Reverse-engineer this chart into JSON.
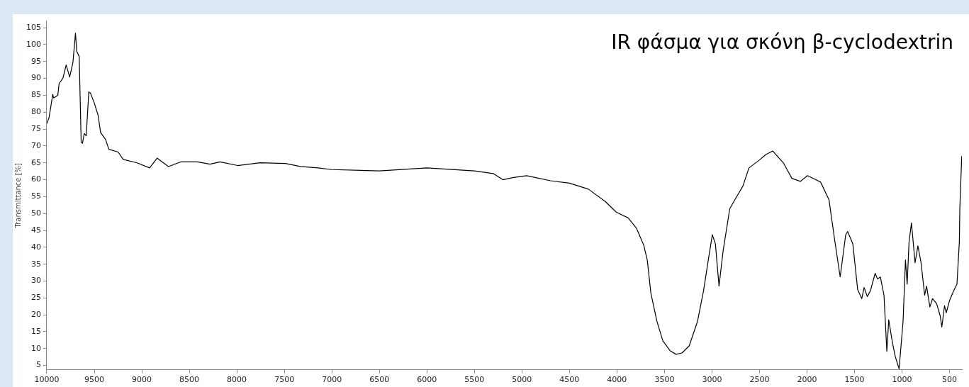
{
  "chart_data": {
    "type": "line",
    "title": "IR φάσμα για σκόνη β-cyclodextrin",
    "ylabel": "Transmittance [%]",
    "x": [
      10000,
      9976,
      9937,
      9929,
      9884,
      9870,
      9831,
      9796,
      9759,
      9725,
      9698,
      9685,
      9659,
      9638,
      9624,
      9606,
      9585,
      9558,
      9540,
      9500,
      9460,
      9434,
      9381,
      9347,
      9249,
      9196,
      9050,
      8918,
      8839,
      8720,
      8587,
      8415,
      8283,
      8177,
      7992,
      7754,
      7489,
      7331,
      7146,
      7000,
      6500,
      6000,
      5500,
      5300,
      5200,
      5100,
      4950,
      4700,
      4500,
      4300,
      4121,
      4008,
      3882,
      3794,
      3718,
      3681,
      3643,
      3580,
      3517,
      3442,
      3379,
      3316,
      3240,
      3152,
      3089,
      3039,
      2996,
      2964,
      2926,
      2883,
      2813,
      2750,
      2675,
      2611,
      2511,
      2435,
      2360,
      2247,
      2159,
      2070,
      1995,
      1857,
      1769,
      1706,
      1651,
      1593,
      1573,
      1518,
      1467,
      1424,
      1399,
      1366,
      1333,
      1283,
      1258,
      1228,
      1190,
      1160,
      1140,
      1102,
      1072,
      1031,
      989,
      964,
      946,
      926,
      901,
      863,
      833,
      800,
      762,
      742,
      707,
      679,
      636,
      598,
      581,
      553,
      535,
      498,
      460,
      422,
      397,
      392,
      372
    ],
    "series": [
      {
        "color": "#000000",
        "values": [
          76.6,
          78.4,
          85.3,
          84.2,
          85,
          88.5,
          90,
          94,
          90.4,
          94.7,
          103.4,
          98,
          96.5,
          71.1,
          70.8,
          73.7,
          73,
          86,
          85.6,
          82.7,
          79.1,
          74,
          71.9,
          69,
          68.2,
          66,
          65,
          63.5,
          66.4,
          63.9,
          65.3,
          65.3,
          64.6,
          65.3,
          64.2,
          65,
          64.8,
          63.9,
          63.5,
          63,
          62.6,
          63.5,
          62.6,
          61.8,
          60,
          60.6,
          61.2,
          59.7,
          59,
          57.2,
          53.5,
          50.4,
          48.7,
          45.6,
          40.6,
          36.2,
          26.4,
          18.1,
          12.3,
          9.4,
          8.3,
          8.7,
          10.8,
          18.1,
          27.1,
          36.2,
          43.7,
          41,
          28.5,
          38.9,
          51.4,
          54.5,
          58.1,
          63.5,
          65.6,
          67.4,
          68.5,
          64.9,
          60.4,
          59.5,
          61.2,
          59.3,
          54.1,
          41.6,
          31.2,
          43.7,
          44.7,
          41,
          27.5,
          24.8,
          28.1,
          25.4,
          27.1,
          32.3,
          30.6,
          31.2,
          25.8,
          9.2,
          18.5,
          11.9,
          7.7,
          4,
          18.1,
          36.2,
          29.1,
          41.6,
          47.2,
          35.4,
          40.4,
          35.4,
          25.8,
          28.5,
          22.3,
          24.8,
          23.3,
          19.6,
          16.4,
          22.7,
          20.6,
          24.4,
          26.9,
          29.1,
          41.6,
          51.4,
          67
        ]
      }
    ],
    "xlim": [
      10000,
      370
    ],
    "ylim": [
      3.7,
      107
    ],
    "xticks": [
      10000,
      9500,
      9000,
      8500,
      8000,
      7500,
      7000,
      6500,
      6000,
      5500,
      5000,
      4500,
      4000,
      3500,
      3000,
      2500,
      2000,
      1500,
      1000,
      500
    ],
    "yticks": [
      5,
      10,
      15,
      20,
      25,
      30,
      35,
      40,
      45,
      50,
      55,
      60,
      65,
      70,
      75,
      80,
      85,
      90,
      95,
      100,
      105
    ],
    "grid": false,
    "legend": false,
    "marker": "none",
    "line_style": "solid"
  }
}
